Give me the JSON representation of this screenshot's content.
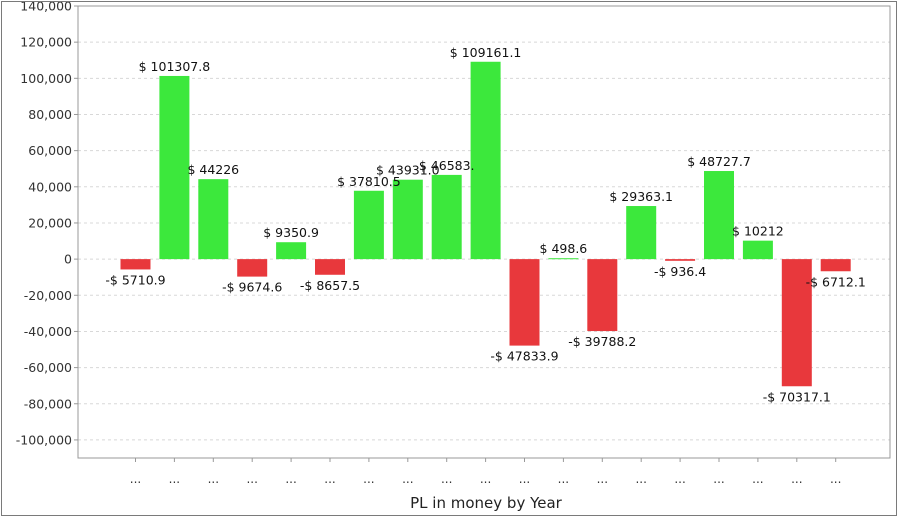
{
  "chart_data": {
    "type": "bar",
    "title": "",
    "xlabel": "PL in money by Year",
    "ylabel": "",
    "ylim": [
      -110000,
      140000
    ],
    "yticks": [
      140000,
      120000,
      100000,
      80000,
      60000,
      40000,
      20000,
      0,
      -20000,
      -40000,
      -60000,
      -80000,
      -100000
    ],
    "ytick_labels": [
      "140,000",
      "120,000",
      "100,000",
      "80,000",
      "60,000",
      "40,000",
      "20,000",
      "0",
      "-20,000",
      "-40,000",
      "-60,000",
      "-80,000",
      "-100,000"
    ],
    "grid": true,
    "legend": "none",
    "categories": [
      "...",
      "...",
      "...",
      "...",
      "...",
      "...",
      "...",
      "...",
      "...",
      "...",
      "...",
      "...",
      "...",
      "...",
      "...",
      "...",
      "...",
      "...",
      "..."
    ],
    "values": [
      -5710.9,
      101307.8,
      44226,
      -9674.6,
      9350.9,
      -8657.5,
      37810.5,
      43931.0,
      46583.0,
      109161.1,
      -47833.9,
      498.6,
      -39788.2,
      29363.1,
      -936.4,
      48727.7,
      10212,
      -70317.1,
      -6712.1
    ],
    "data_labels": [
      "-$ 5710.9",
      "$ 101307.8",
      "$ 44226",
      "-$ 9674.6",
      "$ 9350.9",
      "-$ 8657.5",
      "$ 37810.5",
      "$ 43931.0",
      "$ 46583.",
      "$ 109161.1",
      "-$ 47833.9",
      "$ 498.6",
      "-$ 39788.2",
      "$ 29363.1",
      "-$ 936.4",
      "$ 48727.7",
      "$ 10212",
      "-$ 70317.1",
      "-$ 6712.1"
    ],
    "colors": {
      "positive": "#3ce83c",
      "negative": "#e8383c",
      "grid": "#d8d8d8",
      "axis": "#999999"
    }
  }
}
